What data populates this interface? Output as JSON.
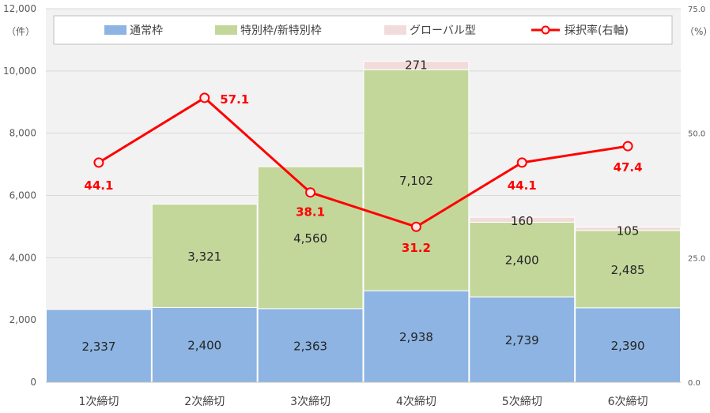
{
  "chart_data": {
    "type": "bar",
    "categories": [
      "1次締切",
      "2次締切",
      "3次締切",
      "4次締切",
      "5次締切",
      "6次締切"
    ],
    "series": [
      {
        "name": "通常枠",
        "values": [
          2337,
          2400,
          2363,
          2938,
          2739,
          2390
        ],
        "color": "#8DB4E2",
        "data_labels": [
          "2,337",
          "2,400",
          "2,363",
          "2,938",
          "2,739",
          "2,390"
        ]
      },
      {
        "name": "特別枠/新特別枠",
        "values": [
          0,
          3321,
          4560,
          7102,
          2400,
          2485
        ],
        "color": "#C4D79B",
        "data_labels": [
          "",
          "3,321",
          "4,560",
          "7,102",
          "2,400",
          "2,485"
        ]
      },
      {
        "name": "グローバル型",
        "values": [
          0,
          0,
          0,
          271,
          160,
          105
        ],
        "color": "#F2DCDB",
        "data_labels": [
          "",
          "",
          "",
          "271",
          "160",
          "105"
        ]
      }
    ],
    "line_series": {
      "name": "採択率(右軸)",
      "values": [
        44.1,
        57.1,
        38.1,
        31.2,
        44.1,
        47.4
      ],
      "data_labels": [
        "44.1",
        "57.1",
        "38.1",
        "31.2",
        "44.1",
        "47.4"
      ],
      "color": "#FF0000"
    },
    "y_left": {
      "unit_label": "（件）",
      "min": 0,
      "max": 12000,
      "ticks": [
        0,
        2000,
        4000,
        6000,
        8000,
        10000,
        12000
      ],
      "tick_labels": [
        "0",
        "2,000",
        "4,000",
        "6,000",
        "8,000",
        "10,000",
        "12,000"
      ]
    },
    "y_right": {
      "unit_label": "（%）",
      "min": 0,
      "max": 75,
      "ticks": [
        0,
        25,
        50,
        75
      ],
      "tick_labels": [
        "0.0",
        "25.0",
        "50.0",
        "75.0"
      ]
    },
    "grid": true,
    "legend": "top",
    "plot_background": "#F2F2F2"
  }
}
